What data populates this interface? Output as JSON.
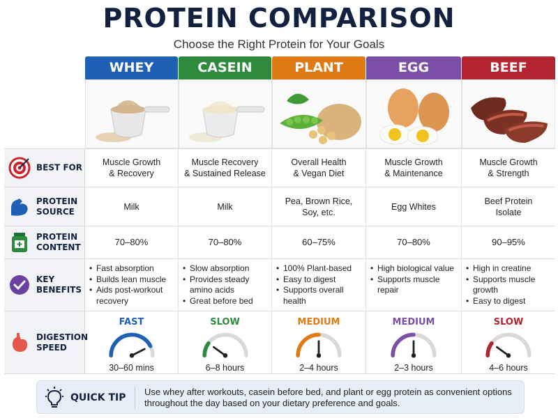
{
  "title": "PROTEIN COMPARISON",
  "subtitle": "Choose the Right Protein for Your Goals",
  "colors": {
    "whey": "#1f5fb4",
    "casein": "#2e8b3e",
    "plant": "#e07a14",
    "egg": "#7b4fa6",
    "beef": "#b3242e"
  },
  "columns": [
    {
      "name": "WHEY",
      "image_icon": "protein-powder-scoop-icon"
    },
    {
      "name": "CASEIN",
      "image_icon": "casein-powder-scoop-icon"
    },
    {
      "name": "PLANT",
      "image_icon": "peas-soy-rice-icon"
    },
    {
      "name": "EGG",
      "image_icon": "eggs-icon"
    },
    {
      "name": "BEEF",
      "image_icon": "beef-steak-icon"
    }
  ],
  "rows": {
    "best_for": {
      "label": "BEST FOR",
      "icon": "target-icon",
      "values": [
        "Muscle Growth\n& Recovery",
        "Muscle Recovery\n& Sustained Release",
        "Overall Health\n& Vegan Diet",
        "Muscle Growth\n& Maintenance",
        "Muscle Growth\n& Strength"
      ]
    },
    "protein_source": {
      "label": "PROTEIN\nSOURCE",
      "icon": "flexed-arm-icon",
      "values": [
        "Milk",
        "Milk",
        "Pea, Brown Rice,\nSoy, etc.",
        "Egg Whites",
        "Beef Protein\nIsolate"
      ]
    },
    "protein_content": {
      "label": "PROTEIN\nCONTENT",
      "icon": "supplement-jar-icon",
      "values": [
        "70–80%",
        "70–80%",
        "60–75%",
        "70–80%",
        "90–95%"
      ]
    },
    "key_benefits": {
      "label": "KEY\nBENEFITS",
      "icon": "checkmark-icon",
      "values": [
        [
          "Fast absorption",
          "Builds lean muscle",
          "Aids post-workout recovery"
        ],
        [
          "Slow absorption",
          "Provides steady amino acids",
          "Great before bed"
        ],
        [
          "100% Plant-based",
          "Easy to digest",
          "Supports overall health"
        ],
        [
          "High biological value",
          "Supports muscle repair"
        ],
        [
          "High in creatine",
          "Supports muscle growth",
          "Easy to digest"
        ]
      ]
    },
    "digestion_speed": {
      "label": "DIGESTION\nSPEED",
      "icon": "stomach-icon",
      "speeds": [
        "FAST",
        "SLOW",
        "MEDIUM",
        "MEDIUM",
        "SLOW"
      ],
      "times": [
        "30–60 mins",
        "6–8 hours",
        "2–4 hours",
        "2–3 hours",
        "4–6 hours"
      ],
      "gauge_level": [
        0.85,
        0.2,
        0.5,
        0.5,
        0.2
      ]
    }
  },
  "quick_tip": {
    "label": "QUICK TIP",
    "icon": "lightbulb-icon",
    "text": "Use whey after workouts, casein before bed, and plant or egg protein as convenient options throughout the day based on your dietary preference and goals."
  }
}
